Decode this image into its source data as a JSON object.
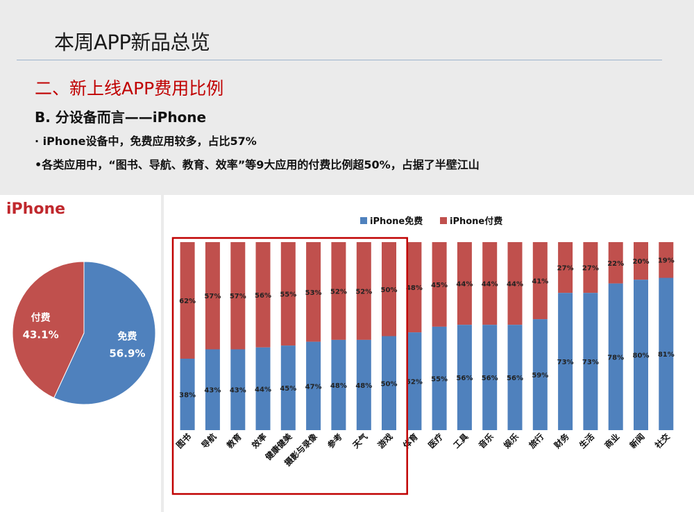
{
  "slide": {
    "title": "本周APP新品总览",
    "section_title": "二、新上线APP费用比例",
    "subtitle": "B. 分设备而言——iPhone",
    "bullets": [
      "· iPhone设备中，免费应用较多，占比57%",
      "•各类应用中，“图书、导航、教育、效率”等9大应用的付费比例超50%，占据了半壁江山"
    ]
  },
  "colors": {
    "free": "#4f81bd",
    "paid": "#c0504d",
    "highlight": "#c00000",
    "section": "#c00000"
  },
  "chart_data": [
    {
      "type": "pie",
      "title": "iPhone",
      "slices": [
        {
          "label": "免费",
          "value": 56.9,
          "display": "56.9%",
          "color": "#4f81bd"
        },
        {
          "label": "付费",
          "value": 43.1,
          "display": "43.1%",
          "color": "#c0504d"
        }
      ]
    },
    {
      "type": "bar",
      "stacked": "percent",
      "legend_position": "top",
      "ylim": [
        0,
        100
      ],
      "categories": [
        "图书",
        "导航",
        "教育",
        "效率",
        "健康健美",
        "摄影与录像",
        "参考",
        "天气",
        "游戏",
        "体育",
        "医疗",
        "工具",
        "音乐",
        "娱乐",
        "旅行",
        "财务",
        "生活",
        "商业",
        "新闻",
        "社交"
      ],
      "series": [
        {
          "name": "iPhone免费",
          "color": "#4f81bd",
          "values": [
            38,
            43,
            43,
            44,
            45,
            47,
            48,
            48,
            50,
            52,
            55,
            56,
            56,
            56,
            59,
            73,
            73,
            78,
            80,
            81
          ]
        },
        {
          "name": "iPhone付费",
          "color": "#c0504d",
          "values": [
            62,
            57,
            57,
            56,
            55,
            53,
            52,
            52,
            50,
            48,
            45,
            44,
            44,
            44,
            41,
            27,
            27,
            22,
            20,
            19
          ]
        }
      ],
      "highlighted_categories": [
        "图书",
        "导航",
        "教育",
        "效率",
        "健康健美",
        "摄影与录像",
        "参考",
        "天气",
        "游戏"
      ]
    }
  ]
}
